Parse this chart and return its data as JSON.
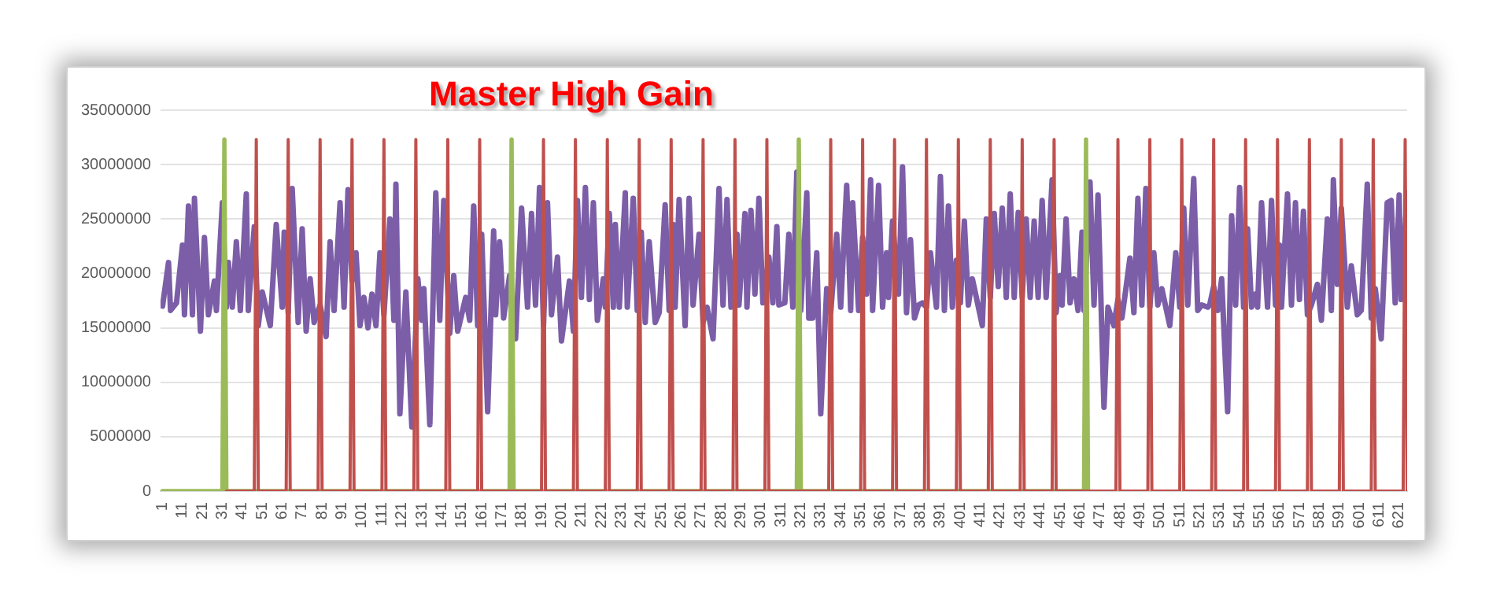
{
  "chart_data": {
    "type": "line",
    "title": "Master High Gain",
    "xlim": [
      0,
      625
    ],
    "xticks": [
      1,
      11,
      21,
      31,
      41,
      51,
      61,
      71,
      81,
      91,
      101,
      111,
      121,
      131,
      141,
      151,
      161,
      171,
      181,
      191,
      201,
      211,
      221,
      231,
      241,
      251,
      261,
      271,
      281,
      291,
      301,
      311,
      321,
      331,
      341,
      351,
      361,
      371,
      381,
      391,
      401,
      411,
      421,
      431,
      441,
      451,
      461,
      471,
      481,
      491,
      501,
      511,
      521,
      531,
      541,
      551,
      561,
      571,
      581,
      591,
      601,
      611,
      621
    ],
    "ylim": [
      0,
      35000000
    ],
    "yticks": [
      0,
      5000000,
      10000000,
      15000000,
      20000000,
      25000000,
      30000000,
      35000000
    ],
    "grid": "y",
    "legend": false,
    "marker": "none",
    "line_style": "solid",
    "series": [
      {
        "color": "#7b5ea7",
        "x": [
          1,
          4,
          5,
          8,
          11,
          12,
          14,
          16,
          17,
          20,
          22,
          24,
          27,
          28,
          31,
          33,
          34,
          36,
          38,
          40,
          43,
          44,
          47,
          49,
          51,
          55,
          58,
          61,
          62,
          64,
          66,
          69,
          71,
          73,
          75,
          77,
          80,
          83,
          85,
          87,
          90,
          92,
          94,
          96,
          98,
          100,
          102,
          104,
          106,
          108,
          110,
          112,
          115,
          117,
          118,
          120,
          123,
          126,
          129,
          131,
          132,
          135,
          138,
          140,
          142,
          145,
          147,
          149,
          153,
          155,
          157,
          159,
          161,
          164,
          167,
          168,
          170,
          172,
          175,
          176,
          178,
          181,
          184,
          186,
          188,
          190,
          192,
          194,
          196,
          199,
          201,
          205,
          207,
          209,
          211,
          213,
          215,
          217,
          219,
          222,
          223,
          225,
          227,
          228,
          230,
          233,
          234,
          237,
          239,
          241,
          243,
          245,
          248,
          250,
          253,
          255,
          257,
          258,
          260,
          263,
          265,
          267,
          270,
          272,
          274,
          277,
          280,
          282,
          284,
          286,
          289,
          290,
          293,
          294,
          296,
          298,
          300,
          302,
          305,
          307,
          309,
          310,
          313,
          315,
          317,
          319,
          321,
          324,
          325,
          327,
          329,
          331,
          334,
          336,
          339,
          341,
          344,
          346,
          347,
          350,
          352,
          354,
          356,
          357,
          360,
          362,
          364,
          365,
          367,
          370,
          372,
          374,
          376,
          378,
          380,
          382,
          384,
          386,
          389,
          391,
          393,
          395,
          397,
          399,
          401,
          403,
          405,
          407,
          409,
          412,
          414,
          416,
          418,
          420,
          422,
          424,
          426,
          428,
          430,
          432,
          434,
          436,
          438,
          440,
          442,
          444,
          447,
          449,
          451,
          452,
          454,
          456,
          458,
          460,
          462,
          463,
          466,
          468,
          470,
          473,
          475,
          478,
          480,
          482,
          484,
          486,
          488,
          490,
          492,
          494,
          496,
          498,
          500,
          502,
          506,
          509,
          511,
          513,
          515,
          518,
          520,
          522,
          525,
          526,
          528,
          530,
          532,
          535,
          537,
          539,
          541,
          543,
          545,
          547,
          549,
          550,
          552,
          555,
          557,
          559,
          561,
          562,
          565,
          567,
          569,
          571,
          573,
          575,
          577,
          580,
          582,
          585,
          587,
          588,
          590,
          592,
          595,
          597,
          600,
          602,
          605,
          607,
          609,
          612,
          615,
          617,
          619,
          621,
          622,
          625
        ],
        "values": [
          17000000,
          21000000,
          16600000,
          17300000,
          22600000,
          16200000,
          26200000,
          16200000,
          26900000,
          14700000,
          23300000,
          16200000,
          19300000,
          16600000,
          26500000,
          16900000,
          21000000,
          16900000,
          22900000,
          16600000,
          27300000,
          16600000,
          24300000,
          15200000,
          18300000,
          15200000,
          24500000,
          16900000,
          23800000,
          16400000,
          27800000,
          15500000,
          24100000,
          14700000,
          19500000,
          15500000,
          17100000,
          14200000,
          22900000,
          16600000,
          26500000,
          16900000,
          27700000,
          19300000,
          21900000,
          15200000,
          17800000,
          15000000,
          18100000,
          15200000,
          21900000,
          16200000,
          25000000,
          15700000,
          28200000,
          7100000,
          18300000,
          5900000,
          19500000,
          15700000,
          18600000,
          6100000,
          27400000,
          15700000,
          26700000,
          14500000,
          19800000,
          14700000,
          17800000,
          15700000,
          26200000,
          15200000,
          23600000,
          7300000,
          23900000,
          16200000,
          22900000,
          15900000,
          19800000,
          16600000,
          14000000,
          26000000,
          16900000,
          25500000,
          17100000,
          27900000,
          15200000,
          26500000,
          16200000,
          21500000,
          13800000,
          19300000,
          14700000,
          26700000,
          17800000,
          27900000,
          17600000,
          26500000,
          15700000,
          19500000,
          16900000,
          25500000,
          16900000,
          24500000,
          16900000,
          27400000,
          16900000,
          26900000,
          16600000,
          23800000,
          15500000,
          22900000,
          15500000,
          16400000,
          26300000,
          16600000,
          24500000,
          16900000,
          26800000,
          15200000,
          26900000,
          17100000,
          23600000,
          15500000,
          16900000,
          14000000,
          27800000,
          17100000,
          26800000,
          16900000,
          23600000,
          17100000,
          25500000,
          16900000,
          25800000,
          18100000,
          26900000,
          17300000,
          21500000,
          17300000,
          24300000,
          17100000,
          17300000,
          23600000,
          16900000,
          29300000,
          16600000,
          27400000,
          15900000,
          15900000,
          21900000,
          7100000,
          18600000,
          16400000,
          23600000,
          16900000,
          28100000,
          16600000,
          26500000,
          16600000,
          23300000,
          18100000,
          28600000,
          16600000,
          28100000,
          16900000,
          21900000,
          17800000,
          24800000,
          18100000,
          29800000,
          16400000,
          23100000,
          15900000,
          17100000,
          17300000,
          16900000,
          21900000,
          16900000,
          28900000,
          16600000,
          26200000,
          16900000,
          21200000,
          17300000,
          24800000,
          17100000,
          19500000,
          17800000,
          15200000,
          25000000,
          17800000,
          25500000,
          18800000,
          26000000,
          17800000,
          27300000,
          17800000,
          25600000,
          17800000,
          25000000,
          17800000,
          24800000,
          17800000,
          26700000,
          17800000,
          28600000,
          16400000,
          19800000,
          17100000,
          25000000,
          17300000,
          19500000,
          16600000,
          23800000,
          16600000,
          28400000,
          17100000,
          27200000,
          7700000,
          16900000,
          15200000,
          17600000,
          15900000,
          18600000,
          21400000,
          16400000,
          26900000,
          17100000,
          27800000,
          16900000,
          21900000,
          17100000,
          18600000,
          15200000,
          21900000,
          16900000,
          26000000,
          17100000,
          28700000,
          16600000,
          17100000,
          16900000,
          17100000,
          18800000,
          16600000,
          19500000,
          7300000,
          25300000,
          17100000,
          27900000,
          16900000,
          24100000,
          16900000,
          18100000,
          16900000,
          26500000,
          16900000,
          26700000,
          17100000,
          22600000,
          16900000,
          27300000,
          17100000,
          26500000,
          17600000,
          25700000,
          16200000,
          17100000,
          19000000,
          15700000,
          25000000,
          16600000,
          28600000,
          19000000,
          26000000,
          16900000,
          20700000,
          16200000,
          16600000,
          28200000,
          15900000,
          18600000,
          14000000,
          26500000,
          26700000,
          17300000,
          27200000,
          17600000,
          27400000
        ]
      },
      {
        "color": "#9bbb59",
        "x": [
          1,
          31,
          32,
          33,
          175,
          176,
          177,
          319,
          320,
          321,
          463,
          464,
          465
        ],
        "values": [
          0,
          0,
          32300000,
          0,
          0,
          32300000,
          0,
          0,
          32300000,
          0,
          0,
          32300000,
          0
        ]
      },
      {
        "color": "#c0504d",
        "x": [
          33,
          47,
          48,
          49,
          63,
          64,
          65,
          79,
          80,
          81,
          95,
          96,
          97,
          111,
          112,
          113,
          127,
          128,
          129,
          143,
          144,
          145,
          159,
          160,
          161,
          191,
          192,
          193,
          207,
          208,
          209,
          223,
          224,
          225,
          239,
          240,
          241,
          255,
          256,
          257,
          271,
          272,
          273,
          287,
          288,
          289,
          303,
          304,
          305,
          335,
          336,
          337,
          351,
          352,
          353,
          367,
          368,
          369,
          383,
          384,
          385,
          399,
          400,
          401,
          415,
          416,
          417,
          431,
          432,
          433,
          447,
          448,
          449,
          479,
          480,
          481,
          495,
          496,
          497,
          511,
          512,
          513,
          527,
          528,
          529,
          543,
          544,
          545,
          559,
          560,
          561,
          575,
          576,
          577,
          591,
          592,
          593,
          607,
          608,
          609,
          623,
          624,
          625
        ],
        "values": [
          0,
          0,
          32300000,
          0,
          0,
          32300000,
          0,
          0,
          32300000,
          0,
          0,
          32300000,
          0,
          0,
          32300000,
          0,
          0,
          32300000,
          0,
          0,
          32300000,
          0,
          0,
          32300000,
          0,
          0,
          32300000,
          0,
          0,
          32300000,
          0,
          0,
          32300000,
          0,
          0,
          32300000,
          0,
          0,
          32300000,
          0,
          0,
          32300000,
          0,
          0,
          32300000,
          0,
          0,
          32300000,
          0,
          0,
          32300000,
          0,
          0,
          32300000,
          0,
          0,
          32300000,
          0,
          0,
          32300000,
          0,
          0,
          32300000,
          0,
          0,
          32300000,
          0,
          0,
          32300000,
          0,
          0,
          32300000,
          0,
          0,
          32300000,
          0,
          0,
          32300000,
          0,
          0,
          32300000,
          0,
          0,
          32300000,
          0,
          0,
          32300000,
          0,
          0,
          32300000,
          0,
          0,
          32300000,
          0,
          0,
          32300000,
          0,
          0,
          32300000,
          0,
          0,
          32300000,
          0
        ]
      }
    ]
  }
}
